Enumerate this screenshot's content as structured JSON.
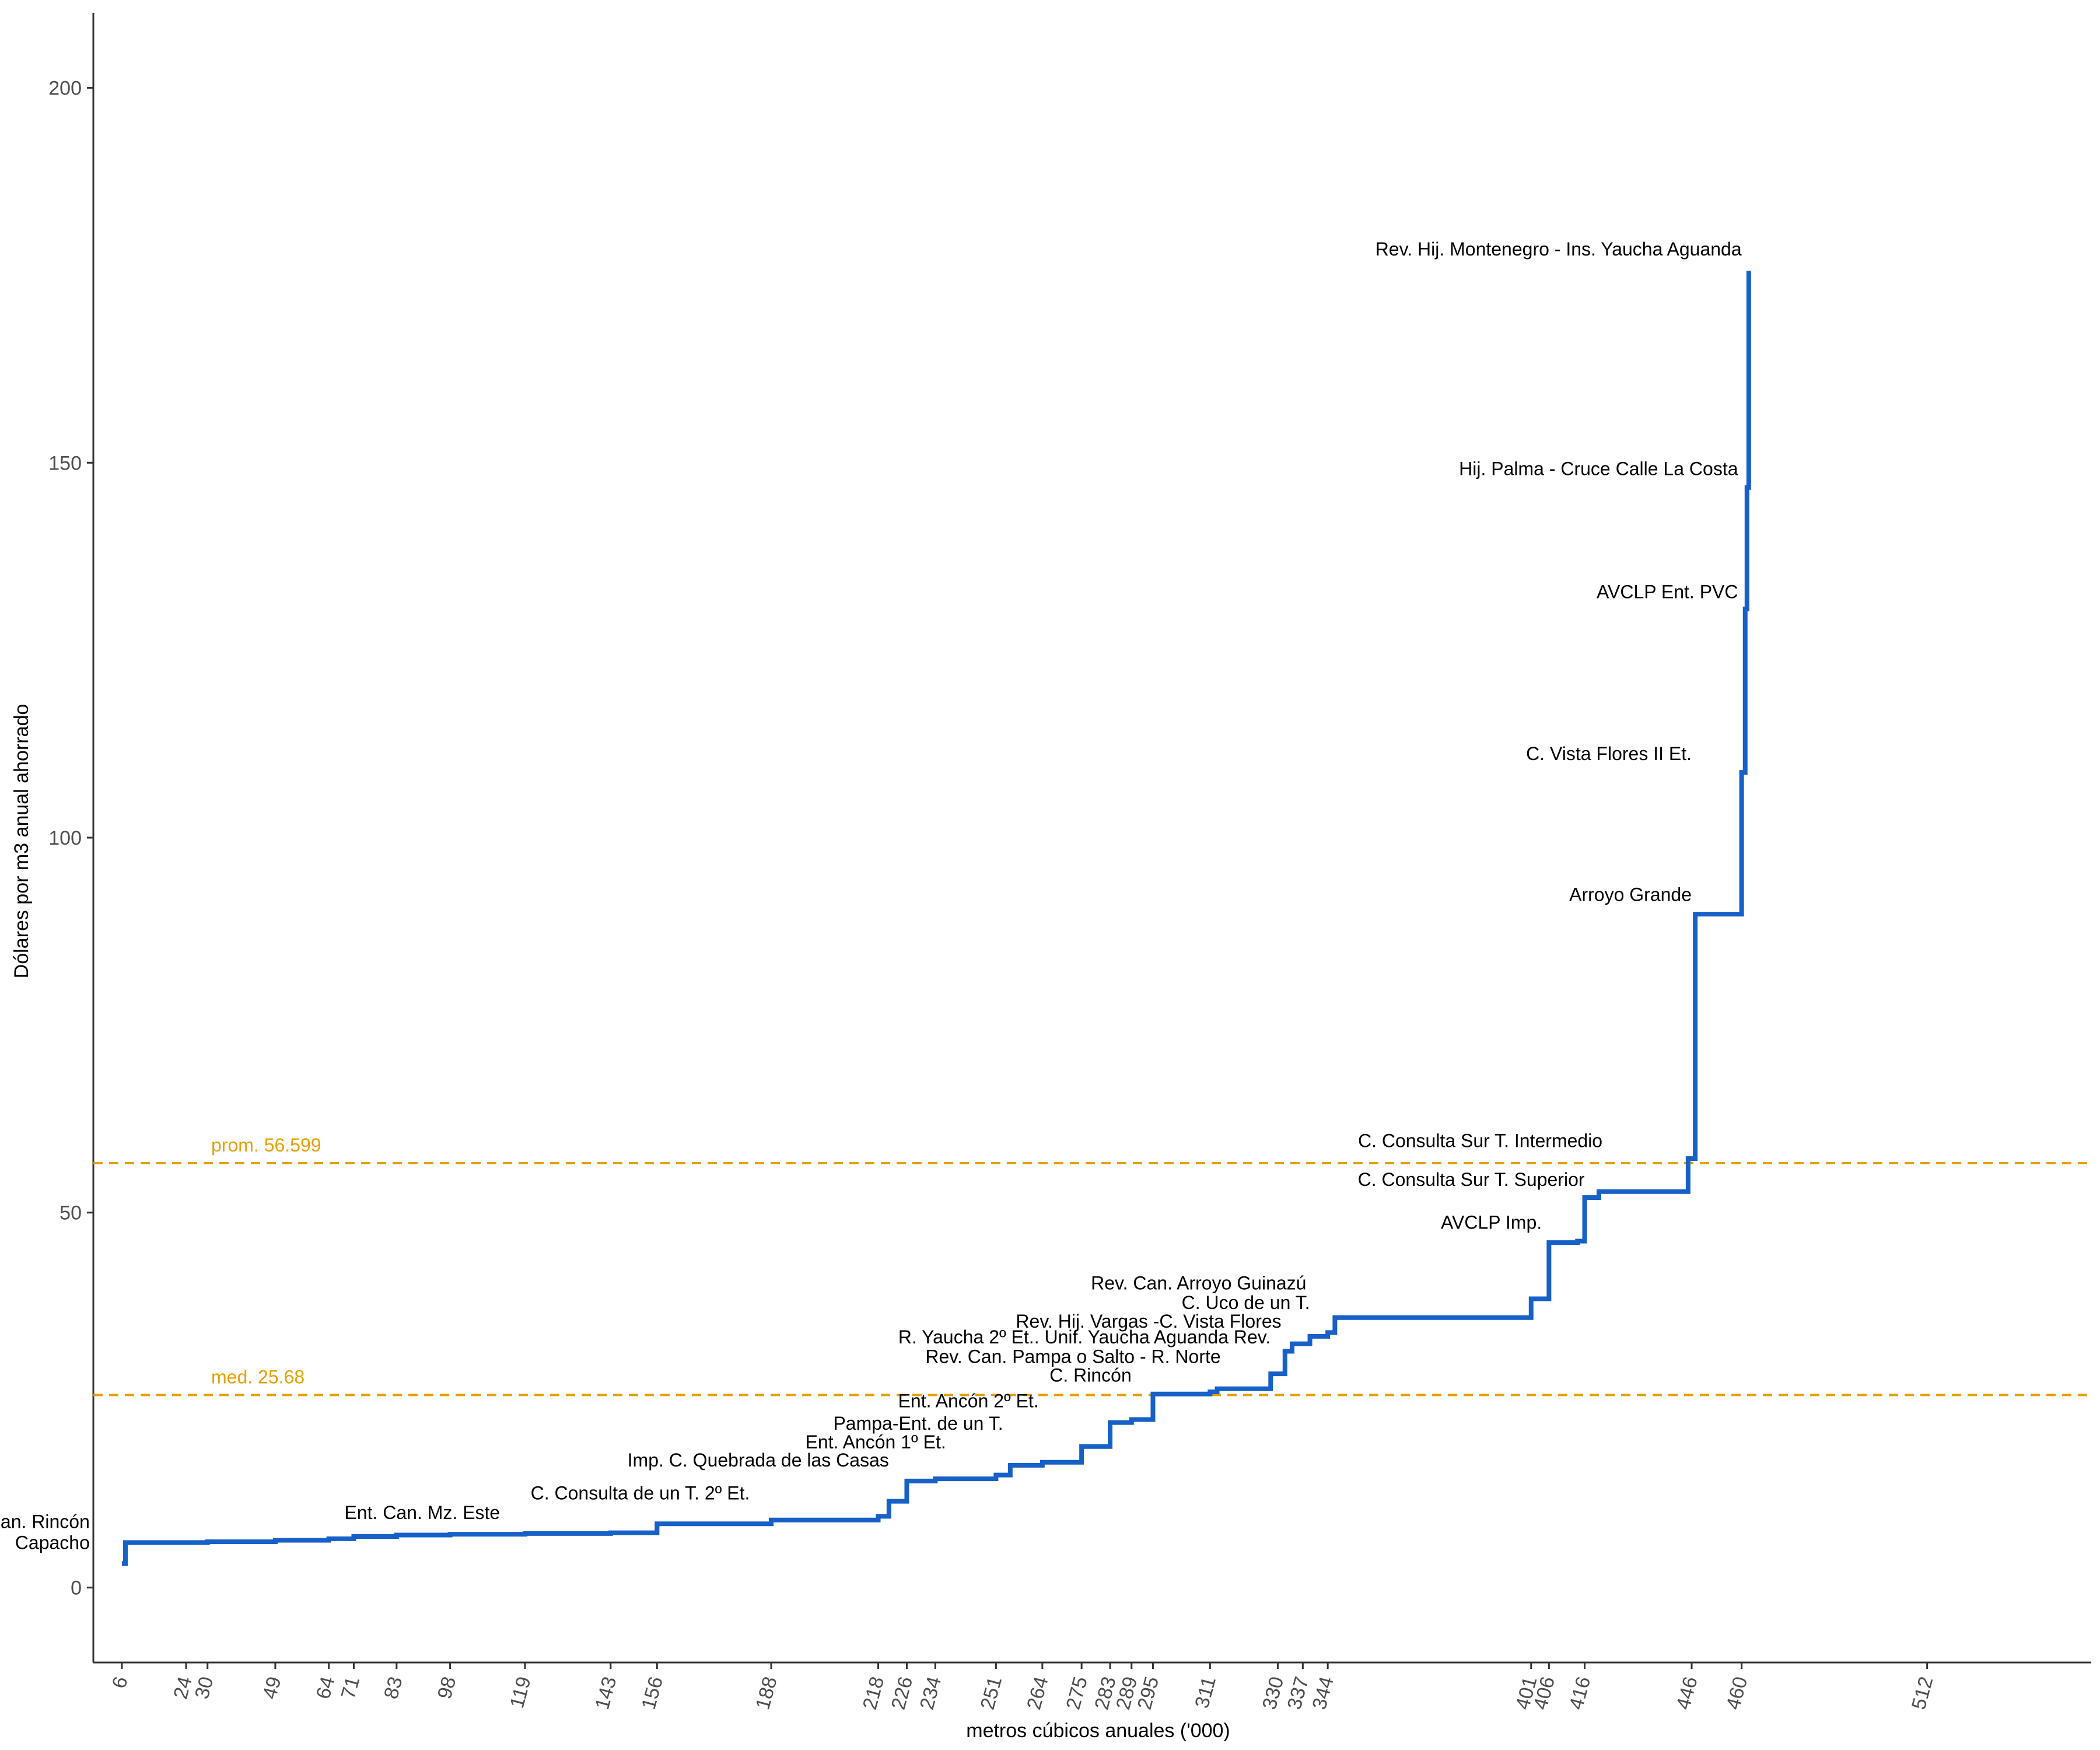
{
  "chart_data": {
    "type": "line",
    "step": true,
    "title": "",
    "xlabel": "metros cúbicos anuales ('000)",
    "ylabel": "Dólares por m3 anual ahorrado",
    "yticks": [
      0,
      50,
      100,
      150,
      200
    ],
    "xticks": [
      6,
      24,
      30,
      49,
      64,
      71,
      83,
      98,
      119,
      143,
      156,
      188,
      218,
      226,
      234,
      251,
      264,
      275,
      283,
      289,
      295,
      311,
      330,
      337,
      344,
      401,
      406,
      416,
      446,
      460,
      512
    ],
    "xlim": [
      -2,
      558
    ],
    "ylim": [
      -10,
      210
    ],
    "grid": false,
    "line_color": "#1660C7",
    "series": [
      {
        "x": [
          6,
          7,
          24,
          30,
          49,
          64,
          71,
          83,
          98,
          119,
          143,
          156,
          188,
          218,
          221,
          226,
          234,
          251,
          255,
          264,
          275,
          283,
          289,
          295,
          311,
          313,
          328,
          332,
          334,
          339,
          344,
          346,
          401,
          406,
          414,
          416,
          420,
          445,
          447,
          460,
          461,
          461.5,
          462
        ],
        "y": [
          3.2,
          6.0,
          6.0,
          6.1,
          6.3,
          6.5,
          6.8,
          7.0,
          7.1,
          7.2,
          7.3,
          8.5,
          9.0,
          9.5,
          11.5,
          14.2,
          14.5,
          15.0,
          16.3,
          16.7,
          18.8,
          22.0,
          22.4,
          25.8,
          26.1,
          26.5,
          28.5,
          31.5,
          32.5,
          33.5,
          34.0,
          36.0,
          38.5,
          46.0,
          46.2,
          52.0,
          52.8,
          57.2,
          89.8,
          108.7,
          130.5,
          146.7,
          175.6
        ]
      }
    ],
    "reference_lines": [
      {
        "label": "prom. 56.599",
        "value": 56.599,
        "color": "#E69F00",
        "style": "dashed"
      },
      {
        "label": "med. 25.68",
        "value": 25.68,
        "color": "#E69F00",
        "style": "dashed"
      }
    ],
    "annotations": [
      {
        "text": "Rev. Hij. Montenegro - Ins. Yaucha Aguanda",
        "x": 460,
        "y": 178.5,
        "anchor": "end"
      },
      {
        "text": "Hij. Palma - Cruce Calle La Costa",
        "x": 459,
        "y": 149.2,
        "anchor": "end"
      },
      {
        "text": "AVCLP Ent. PVC",
        "x": 459,
        "y": 132.8,
        "anchor": "end"
      },
      {
        "text": "C. Vista Flores II Et.",
        "x": 446,
        "y": 111.2,
        "anchor": "end"
      },
      {
        "text": "Arroyo Grande",
        "x": 446,
        "y": 92.4,
        "anchor": "end"
      },
      {
        "text": "C. Consulta Sur T. Intermedio",
        "x": 421,
        "y": 59.6,
        "anchor": "end"
      },
      {
        "text": "C. Consulta Sur T. Superior",
        "x": 416,
        "y": 54.4,
        "anchor": "end"
      },
      {
        "text": "AVCLP Imp.",
        "x": 404,
        "y": 48.7,
        "anchor": "end"
      },
      {
        "text": "Rev. Can. Arroyo Guinazú",
        "x": 338,
        "y": 40.6,
        "anchor": "end"
      },
      {
        "text": "C. Uco de un T.",
        "x": 339,
        "y": 38.0,
        "anchor": "end"
      },
      {
        "text": "Rev. Hij. Vargas -C. Vista Flores",
        "x": 331,
        "y": 35.5,
        "anchor": "end"
      },
      {
        "text": "R. Yaucha 2º Et.. Unif. Yaucha Aguanda Rev.",
        "x": 328,
        "y": 33.4,
        "anchor": "end"
      },
      {
        "text": "Rev. Can. Pampa o Salto - R. Norte",
        "x": 314,
        "y": 30.8,
        "anchor": "end"
      },
      {
        "text": "C. Rincón",
        "x": 289,
        "y": 28.3,
        "anchor": "end"
      },
      {
        "text": "Ent. Ancón 2º Et.",
        "x": 263,
        "y": 24.9,
        "anchor": "end"
      },
      {
        "text": "Pampa-Ent. de un T.",
        "x": 253,
        "y": 21.9,
        "anchor": "end"
      },
      {
        "text": "Ent. Ancón 1º Et.",
        "x": 237,
        "y": 19.4,
        "anchor": "end"
      },
      {
        "text": "Imp. C. Quebrada de las Casas",
        "x": 221,
        "y": 17.0,
        "anchor": "end"
      },
      {
        "text": "C. Consulta de un T. 2º Et.",
        "x": 182,
        "y": 12.6,
        "anchor": "end"
      },
      {
        "text": "Ent. Can. Mz. Este",
        "x": 112,
        "y": 10.0,
        "anchor": "end"
      },
      {
        "text": "Can. Rincón",
        "x": -3,
        "y": 8.8,
        "anchor": "end"
      },
      {
        "text": "Capacho",
        "x": -3,
        "y": 6.0,
        "anchor": "end"
      }
    ]
  }
}
